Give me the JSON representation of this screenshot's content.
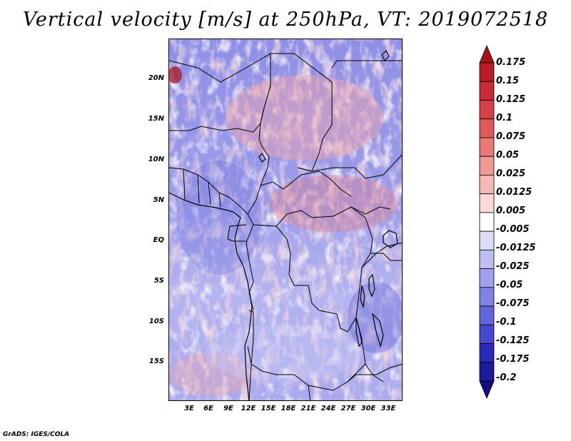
{
  "title": "Vertical velocity [m/s] at 250hPa, VT: 2019072518",
  "footer": "GrADS: IGES/COLA",
  "colors": {
    "deep_red": "#a50f15",
    "red": "#d6304b",
    "light_red": "#f4a7a7",
    "white": "#ffffff",
    "light_blue": "#b7b9f2",
    "blue": "#6f6fe0",
    "deep_blue": "#1e1a9c"
  },
  "map": {
    "lat_labels": [
      "20N",
      "15N",
      "10N",
      "5N",
      "EQ",
      "5S",
      "10S",
      "15S"
    ],
    "lon_labels": [
      "3E",
      "6E",
      "9E",
      "12E",
      "15E",
      "18E",
      "21E",
      "24E",
      "27E",
      "30E",
      "33E"
    ]
  },
  "colorbar": {
    "levels": [
      "0.175",
      "0.15",
      "0.125",
      "0.1",
      "0.075",
      "0.05",
      "0.025",
      "0.0125",
      "0.005",
      "-0.005",
      "-0.0125",
      "-0.025",
      "-0.05",
      "-0.075",
      "-0.1",
      "-0.125",
      "-0.175",
      "-0.2"
    ],
    "segment_colors": [
      "#a50f15",
      "#b81d26",
      "#c92c36",
      "#d63f47",
      "#e05a5d",
      "#e97876",
      "#f09893",
      "#f6b9b4",
      "#fbdad7",
      "#ffffff",
      "#dcdcf8",
      "#bebef3",
      "#a0a0ec",
      "#8282e4",
      "#6464dc",
      "#4646cf",
      "#2c28b8",
      "#1e1a9c",
      "#130e86"
    ]
  }
}
